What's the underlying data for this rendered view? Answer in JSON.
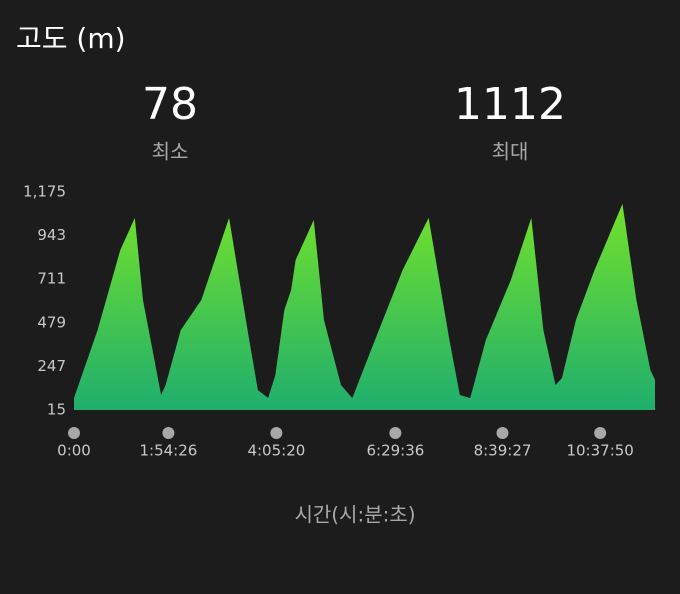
{
  "chart_data": {
    "type": "area",
    "title": "고도 (m)",
    "stats": [
      {
        "value": 78,
        "label": "최소"
      },
      {
        "value": 1112,
        "label": "최대"
      }
    ],
    "x_label": "시간(시:분:초)",
    "x": [
      0,
      1716,
      3366,
      4422,
      5016,
      6336,
      6666,
      7764,
      9260,
      11279,
      12625,
      13373,
      14122,
      14645,
      15297,
      15791,
      16121,
      17439,
      18181,
      19417,
      20241,
      21889,
      23905,
      25795,
      27307,
      28063,
      28819,
      29953,
      31775,
      33262,
      34141,
      35020,
      35493,
      36508,
      37864,
      39892,
      40906,
      41921,
      42259
    ],
    "values": [
      79,
      440,
      866,
      1037,
      600,
      95,
      148,
      440,
      600,
      1037,
      440,
      121,
      79,
      201,
      547,
      653,
      813,
      1026,
      494,
      148,
      78,
      387,
      760,
      1037,
      387,
      95,
      78,
      387,
      707,
      1037,
      440,
      148,
      185,
      494,
      760,
      1112,
      600,
      228,
      175
    ],
    "color_top": "#72e22a",
    "color_bottom": "#1fae6e",
    "xlim": [
      0,
      42259
    ],
    "ylim": [
      15,
      1175
    ],
    "xticks": [
      {
        "value": 0,
        "label": "0:00"
      },
      {
        "value": 6866,
        "label": "1:54:26"
      },
      {
        "value": 14720,
        "label": "4:05:20"
      },
      {
        "value": 23376,
        "label": "6:29:36"
      },
      {
        "value": 31167,
        "label": "8:39:27"
      },
      {
        "value": 38270,
        "label": "10:37:50"
      }
    ],
    "yticks": [
      15,
      247,
      479,
      711,
      943,
      {
        "value": 1175,
        "label": "1,175"
      }
    ]
  }
}
